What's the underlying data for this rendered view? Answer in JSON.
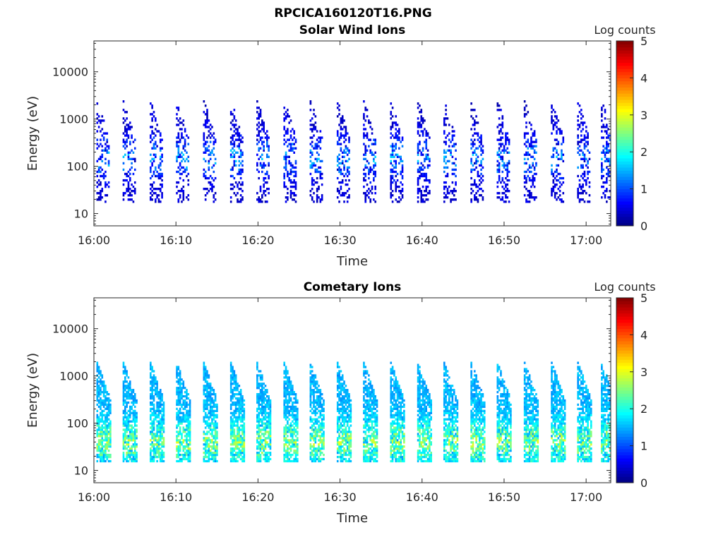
{
  "figure": {
    "title": "RPCICA160120T16.PNG"
  },
  "chart_data": [
    {
      "type": "heatmap",
      "title": "Solar Wind Ions",
      "xlabel": "Time",
      "ylabel": "Energy (eV)",
      "x_tick_labels": [
        "16:00",
        "16:10",
        "16:20",
        "16:30",
        "16:40",
        "16:50",
        "17:00"
      ],
      "x_ticks_min": [
        0,
        10,
        20,
        30,
        40,
        50,
        60
      ],
      "xlim_min": [
        0,
        63
      ],
      "y_scale": "log",
      "ylim": [
        5.5,
        45000
      ],
      "y_tick_values": [
        10,
        100,
        1000,
        10000
      ],
      "y_tick_labels": [
        "10",
        "100",
        "1000",
        "10000"
      ],
      "colorbar": {
        "label": "Log counts",
        "min": 0,
        "max": 5,
        "tick_values": [
          0,
          1,
          2,
          3,
          4,
          5
        ],
        "tick_labels": [
          "0",
          "1",
          "2",
          "3",
          "4",
          "5"
        ],
        "colormap": "jet"
      },
      "sweep_start_minutes": [
        0.3,
        3.5,
        6.8,
        10.0,
        13.3,
        16.6,
        19.8,
        23.1,
        26.3,
        29.6,
        32.8,
        36.1,
        39.4,
        42.6,
        45.9,
        49.1,
        52.4,
        55.7,
        58.9,
        61.8
      ],
      "sweep_duration_minutes": 1.6,
      "energy_peak_ev": 150,
      "energy_top_ev": 2500,
      "energy_bottom_ev": 17,
      "typical_log_counts": 0.6,
      "max_log_counts": 1.7
    },
    {
      "type": "heatmap",
      "title": "Cometary Ions",
      "xlabel": "Time",
      "ylabel": "Energy (eV)",
      "x_tick_labels": [
        "16:00",
        "16:10",
        "16:20",
        "16:30",
        "16:40",
        "16:50",
        "17:00"
      ],
      "x_ticks_min": [
        0,
        10,
        20,
        30,
        40,
        50,
        60
      ],
      "xlim_min": [
        0,
        63
      ],
      "y_scale": "log",
      "ylim": [
        5.5,
        45000
      ],
      "y_tick_values": [
        10,
        100,
        1000,
        10000
      ],
      "y_tick_labels": [
        "10",
        "100",
        "1000",
        "10000"
      ],
      "colorbar": {
        "label": "Log counts",
        "min": 0,
        "max": 5,
        "tick_values": [
          0,
          1,
          2,
          3,
          4,
          5
        ],
        "tick_labels": [
          "0",
          "1",
          "2",
          "3",
          "4",
          "5"
        ],
        "colormap": "jet"
      },
      "sweep_start_minutes": [
        0.3,
        3.5,
        6.8,
        10.0,
        13.3,
        16.6,
        19.8,
        23.1,
        26.3,
        29.6,
        32.8,
        36.1,
        39.4,
        42.6,
        45.9,
        49.1,
        52.4,
        55.7,
        58.9,
        61.8
      ],
      "sweep_duration_minutes": 1.7,
      "energy_peak_ev": 40,
      "energy_top_ev": 2000,
      "energy_bottom_ev": 15,
      "typical_log_counts": 1.7,
      "max_log_counts": 3.0
    }
  ]
}
